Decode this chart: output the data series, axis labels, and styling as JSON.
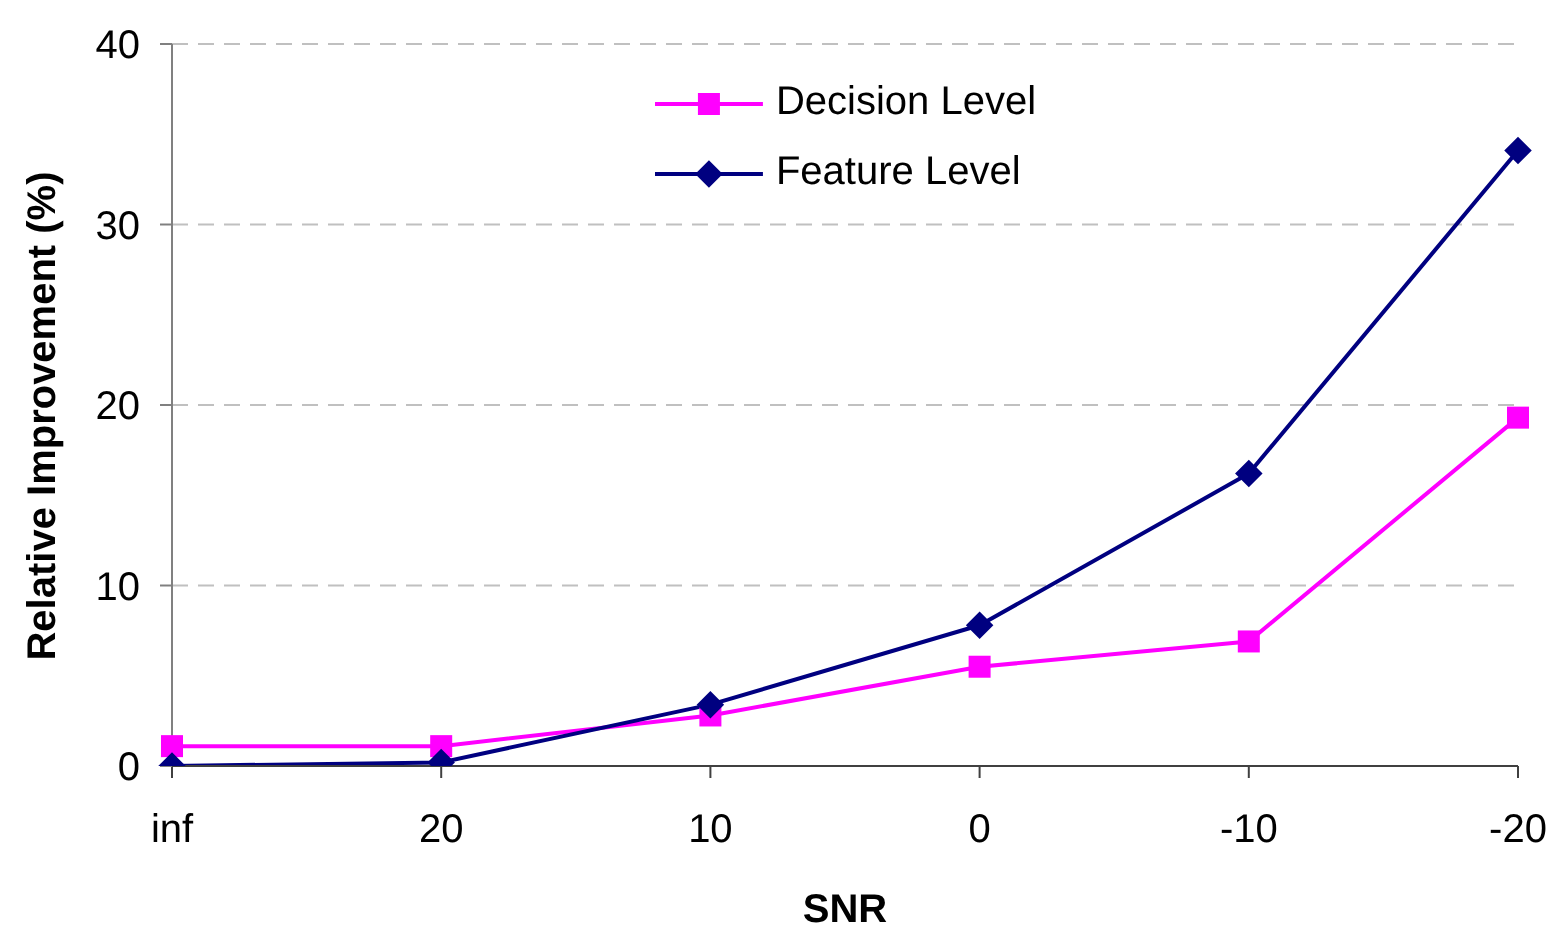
{
  "chart_data": {
    "type": "line",
    "xlabel": "SNR",
    "ylabel": "Relative Improvement (%)",
    "categories": [
      "inf",
      "20",
      "10",
      "0",
      "-10",
      "-20"
    ],
    "series": [
      {
        "name": "Decision Level",
        "color": "#ff00ff",
        "marker": "square",
        "values": [
          1.1,
          1.1,
          2.8,
          5.5,
          6.9,
          19.3
        ]
      },
      {
        "name": "Feature Level",
        "color": "#000080",
        "marker": "diamond",
        "values": [
          0,
          0.2,
          3.4,
          7.8,
          16.2,
          34.1
        ]
      }
    ],
    "ylim": [
      0,
      40
    ],
    "yticks": [
      0,
      10,
      20,
      30,
      40
    ],
    "grid": "y",
    "legend": "top"
  }
}
